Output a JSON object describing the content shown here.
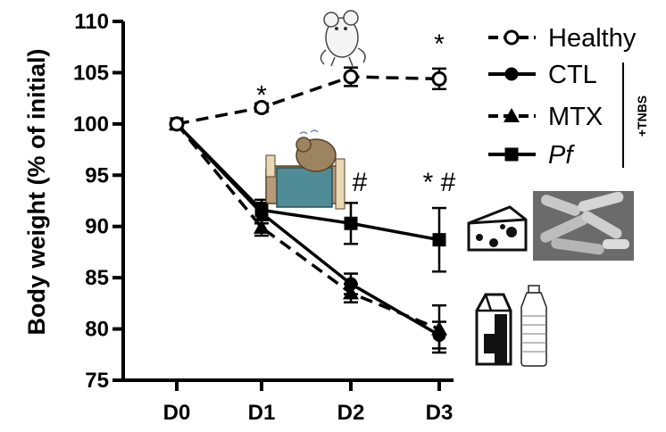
{
  "chart_data": {
    "type": "line",
    "ylabel": "Body weight (% of initial)",
    "xlabel": "",
    "categories": [
      "D0",
      "D1",
      "D2",
      "D3"
    ],
    "ylim": [
      75,
      110
    ],
    "yticks": [
      "75",
      "80",
      "85",
      "90",
      "95",
      "100",
      "105",
      "110"
    ],
    "grid": false,
    "legend_position": "top-right",
    "series": [
      {
        "name": "Healthy",
        "marker": "open-circle",
        "line": "dashed",
        "values": [
          100,
          101.6,
          104.6,
          104.4
        ],
        "errors": [
          0,
          0.4,
          0.9,
          1.0
        ]
      },
      {
        "name": "CTL",
        "marker": "filled-circle",
        "line": "solid",
        "values": [
          100,
          91.3,
          84.4,
          79.4
        ],
        "errors": [
          0,
          1.0,
          1.0,
          1.3
        ]
      },
      {
        "name": "MTX",
        "marker": "triangle",
        "line": "dashed",
        "values": [
          100,
          89.9,
          83.5,
          80.0
        ],
        "errors": [
          0,
          0.8,
          0.9,
          2.3
        ]
      },
      {
        "name": "Pf",
        "marker": "square",
        "line": "solid",
        "values": [
          100,
          91.6,
          90.3,
          88.7
        ],
        "errors": [
          0,
          1.0,
          2.0,
          3.1
        ]
      }
    ],
    "bracket_label": "+TNBS",
    "annotations": [
      {
        "category": "D1",
        "y": 103,
        "text": "*"
      },
      {
        "category": "D2",
        "y": 94.5,
        "text": "* #"
      },
      {
        "category": "D3",
        "y": 108,
        "text": "*"
      },
      {
        "category": "D3",
        "y": 94.5,
        "text": "* #"
      }
    ]
  },
  "illustrations": [
    {
      "name": "healthy-mouse-icon",
      "meaning": "healthy mouse"
    },
    {
      "name": "sick-mouse-icon",
      "meaning": "sick mouse in bed"
    },
    {
      "name": "cheese-icon",
      "meaning": "cheese"
    },
    {
      "name": "bacteria-micrograph-icon",
      "meaning": "bacteria micrograph"
    },
    {
      "name": "milk-carton-icon",
      "meaning": "milk carton"
    },
    {
      "name": "water-bottle-icon",
      "meaning": "water bottle"
    }
  ]
}
